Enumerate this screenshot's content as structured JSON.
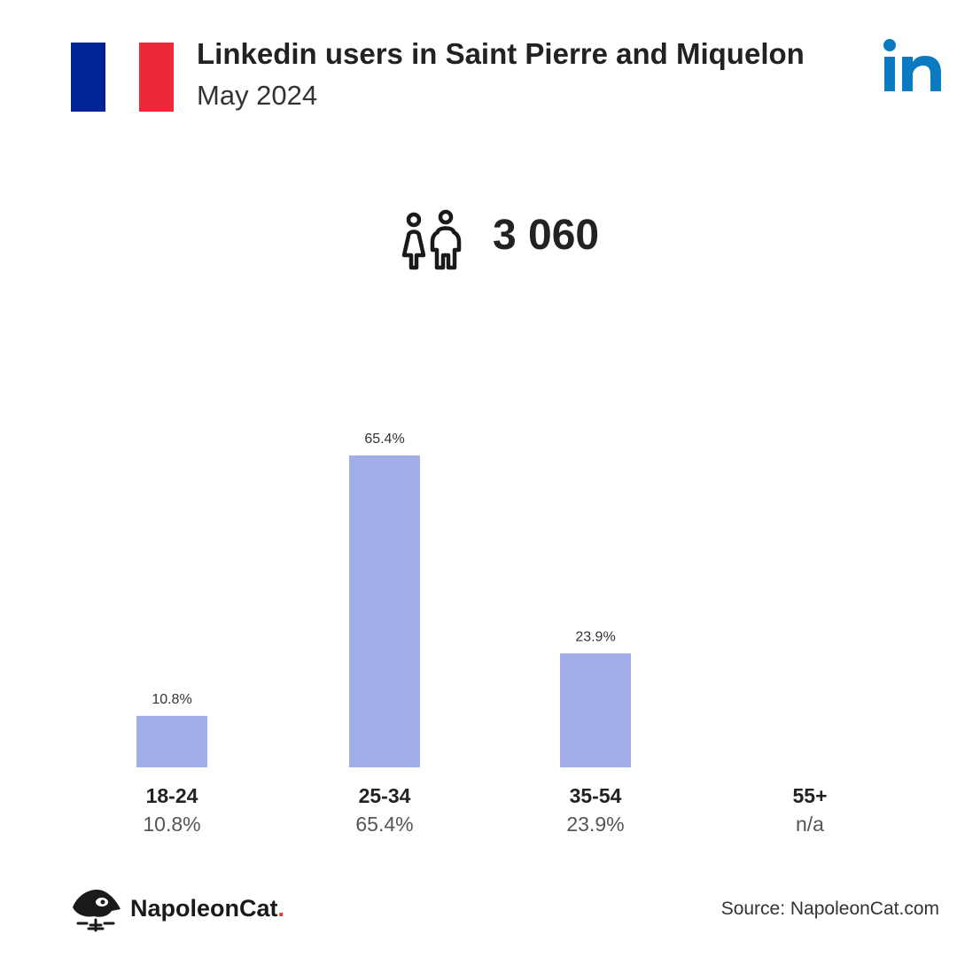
{
  "header": {
    "title": "Linkedin users in Saint Pierre and Miquelon",
    "subtitle": "May 2024",
    "flag_colors": [
      "#002395",
      "#ffffff",
      "#ED2939"
    ],
    "brand_icon": "linkedin-icon",
    "brand_color": "#0A7BC0"
  },
  "summary": {
    "icon": "users-icon",
    "total_users": "3 060"
  },
  "chart_data": {
    "type": "bar",
    "categories": [
      "18-24",
      "25-34",
      "35-54",
      "55+"
    ],
    "values": [
      10.8,
      65.4,
      23.9,
      null
    ],
    "value_labels": [
      "10.8%",
      "65.4%",
      "23.9%",
      "n/a"
    ],
    "bar_color": "#A2AEE8",
    "ylim": [
      0,
      65.4
    ],
    "grid": false,
    "title": "",
    "xlabel": "",
    "ylabel": ""
  },
  "footer": {
    "brand": "NapoleonCat",
    "brand_suffix": ".",
    "brand_suffix_color": "#e53935",
    "logo_icon": "napoleoncat-logo",
    "source": "Source: NapoleonCat.com"
  }
}
